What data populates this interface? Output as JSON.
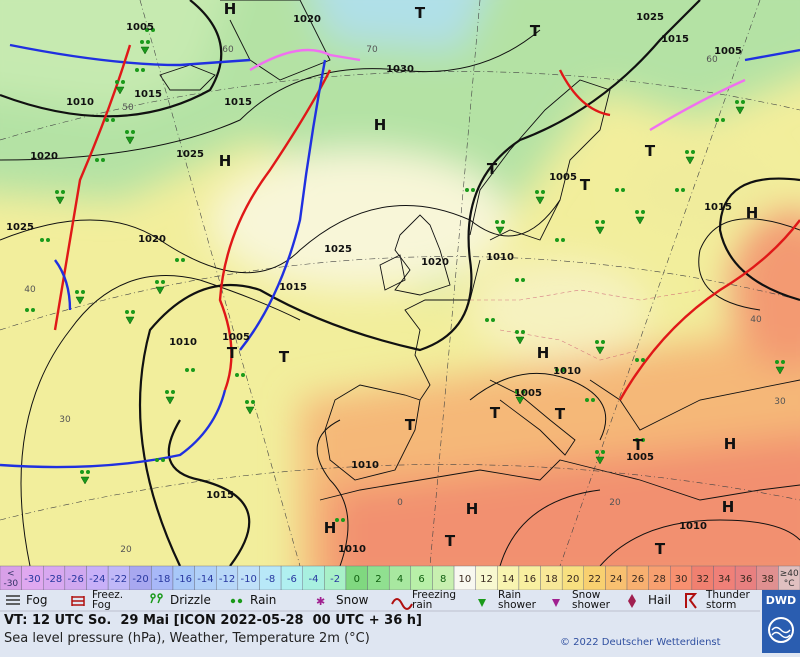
{
  "map": {
    "isobar_labels": [
      1005,
      1020,
      1030,
      1025,
      1015,
      1005,
      1015,
      1010,
      1015,
      1020,
      1025,
      1025,
      1020,
      1025,
      1015,
      1020,
      1010,
      1005,
      1015,
      1010,
      1005,
      1010,
      1005,
      1010,
      1015,
      1010,
      1010,
      1005
    ],
    "pressure_centers": [
      "H",
      "T",
      "T",
      "H",
      "H",
      "T",
      "T",
      "T",
      "H",
      "H",
      "T",
      "T",
      "T",
      "T",
      "T",
      "T",
      "H",
      "H",
      "H",
      "H",
      "T",
      "T"
    ],
    "grid_labels": [
      60,
      50,
      40,
      30,
      20,
      70,
      60,
      40,
      30,
      20,
      0
    ]
  },
  "temperature_scale": {
    "below_label": [
      "<",
      "-30"
    ],
    "values": [
      -30,
      -28,
      -26,
      -24,
      -22,
      -20,
      -18,
      -16,
      -14,
      -12,
      -10,
      -8,
      -6,
      -4,
      -2,
      0,
      2,
      4,
      6,
      8,
      10,
      12,
      14,
      16,
      18,
      20,
      22,
      24,
      26,
      28,
      30,
      32,
      34,
      36,
      38
    ],
    "above_label": [
      "≥40",
      "°C"
    ],
    "colors": [
      "#d8a0e8",
      "#e0a8f0",
      "#d8a8f0",
      "#d0a8f0",
      "#c8b0f8",
      "#c0b8f8",
      "#a8a8f0",
      "#a8b8f8",
      "#a8c8f8",
      "#b0d0f8",
      "#b8d8f8",
      "#c0e0f8",
      "#b8e8f8",
      "#b0f0f0",
      "#a8f0e0",
      "#a8f0c8",
      "#80d880",
      "#90e090",
      "#a8e8a0",
      "#b8f0a8",
      "#c8f0b0",
      "#f8f8f0",
      "#f8f8d0",
      "#f8f4b0",
      "#f8f0a0",
      "#f8e898",
      "#f8e080",
      "#f8d070",
      "#f8c070",
      "#f8b070",
      "#f8a070",
      "#f89070",
      "#f08070",
      "#f08078",
      "#e88080",
      "#e09090",
      "#e0c0c0"
    ]
  },
  "weather_legend": [
    [
      "Fog"
    ],
    [
      "Freez.",
      "Fog"
    ],
    [
      "Drizzle"
    ],
    [
      "Rain"
    ],
    [
      "Snow"
    ],
    [
      "Freezing",
      "rain"
    ],
    [
      "Rain",
      "shower"
    ],
    [
      "Snow",
      "shower"
    ],
    [
      "Hail"
    ],
    [
      "Thunder",
      "storm"
    ]
  ],
  "footer": {
    "valid_time": "VT: 12 UTC So.  29 Mai [ICON 2022-05-28  00 UTC + 36 h]",
    "description": "Sea level pressure (hPa), Weather, Temperature 2m (°C)",
    "copyright": "© 2022 Deutscher Wetterdienst",
    "logo": "DWD"
  }
}
